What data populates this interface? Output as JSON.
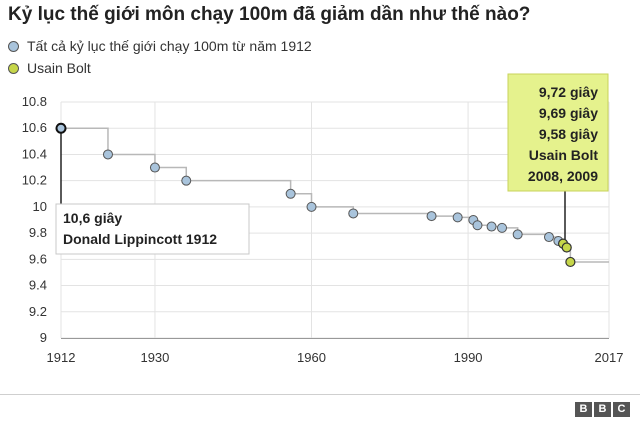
{
  "title": "Kỷ lục thế giới môn chạy 100m đã giảm dần như thế nào?",
  "brand": {
    "letters": [
      "B",
      "B",
      "C"
    ]
  },
  "colors": {
    "all_records": "#a9c4dc",
    "bolt": "#c6d64a",
    "bolt_box": "#e5f28d",
    "step_line": "#b8b8b8",
    "grid": "#e3e3e3"
  },
  "chart_data": {
    "type": "scatter",
    "title": "Kỷ lục thế giới môn chạy 100m đã giảm dần như thế nào?",
    "xlabel": "",
    "ylabel": "",
    "xlim": [
      1912,
      2017
    ],
    "ylim": [
      9,
      10.8
    ],
    "x_ticks": [
      1912,
      1930,
      1960,
      1990,
      2017
    ],
    "y_ticks": [
      "9",
      "9.2",
      "9.4",
      "9.6",
      "9.8",
      "10",
      "10.2",
      "10.4",
      "10.6",
      "10.8"
    ],
    "grid": true,
    "legend_position": "top-left",
    "series": [
      {
        "name": "Tất cả kỷ lục thế giới chạy 100m từ năm 1912",
        "points": [
          {
            "x": 1912,
            "y": 10.6
          },
          {
            "x": 1921,
            "y": 10.4
          },
          {
            "x": 1930,
            "y": 10.3
          },
          {
            "x": 1936,
            "y": 10.2
          },
          {
            "x": 1956,
            "y": 10.1
          },
          {
            "x": 1960,
            "y": 10.0
          },
          {
            "x": 1968,
            "y": 9.95
          },
          {
            "x": 1983,
            "y": 9.93
          },
          {
            "x": 1988,
            "y": 9.92
          },
          {
            "x": 1991,
            "y": 9.9
          },
          {
            "x": 1991.8,
            "y": 9.86
          },
          {
            "x": 1994.5,
            "y": 9.85
          },
          {
            "x": 1996.5,
            "y": 9.84
          },
          {
            "x": 1999.5,
            "y": 9.79
          },
          {
            "x": 2005.5,
            "y": 9.77
          },
          {
            "x": 2007.3,
            "y": 9.74
          }
        ]
      },
      {
        "name": "Usain Bolt",
        "points": [
          {
            "x": 2008.2,
            "y": 9.72
          },
          {
            "x": 2008.9,
            "y": 9.69
          },
          {
            "x": 2009.6,
            "y": 9.58
          }
        ]
      }
    ],
    "step_line_end_x": 2017,
    "annotations": {
      "lippincott": {
        "line1": "10,6 giây",
        "line2": "Donald Lippincott 1912"
      },
      "bolt": {
        "lines": [
          "9,72 giây",
          "9,69 giây",
          "9,58 giây",
          "Usain Bolt",
          "2008, 2009"
        ]
      }
    }
  }
}
